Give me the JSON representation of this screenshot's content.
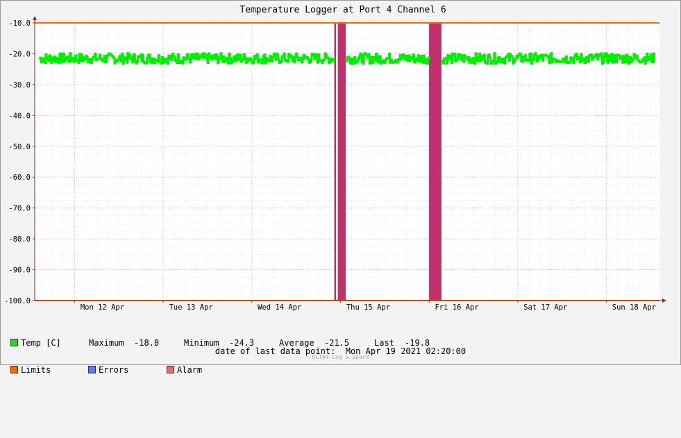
{
  "chart_data": {
    "type": "line",
    "title": "Temperature Logger at Port 4 Channel 6",
    "ylim": [
      -100,
      -10
    ],
    "y_ticks": [
      "-10.0",
      "-20.0",
      "-30.0",
      "-40.0",
      "-50.0",
      "-60.0",
      "-70.0",
      "-80.0",
      "-90.0",
      "-100.0"
    ],
    "y_tick_values": [
      -10,
      -20,
      -30,
      -40,
      -50,
      -60,
      -70,
      -80,
      -90,
      -100
    ],
    "x_ticks": [
      "Mon 12 Apr",
      "Tue 13 Apr",
      "Wed 14 Apr",
      "Thu 15 Apr",
      "Fri 16 Apr",
      "Sat 17 Apr",
      "Sun 18 Apr"
    ],
    "x_range_days": [
      11.55,
      18.6
    ],
    "x_tick_days": [
      12,
      13,
      14,
      15,
      16,
      17,
      18
    ],
    "series": [
      {
        "name": "Temp [C]",
        "color": "#00ee00",
        "mean": -21.5,
        "min": -24.3,
        "max": -18.8
      },
      {
        "name": "Limits",
        "color": "#ff6600",
        "values": [
          -10,
          -100
        ]
      }
    ],
    "alarm_periods_days": [
      [
        14.93,
        14.95
      ],
      [
        14.97,
        15.06
      ],
      [
        16.0,
        16.14
      ]
    ],
    "alarm_color": "#c0306a",
    "grid": true
  },
  "legend": {
    "temp_label": "Temp [C]",
    "limits_label": "Limits",
    "errors_label": "Errors",
    "alarm_label": "Alarm",
    "maximum_label": "Maximum",
    "maximum_value": "-18.8",
    "minimum_label": "Minimum",
    "minimum_value": "-24.3",
    "average_label": "Average",
    "average_value": "-21.5",
    "last_label": "Last",
    "last_value": "-19.8",
    "colors": {
      "temp": "#22dd22",
      "limits": "#ff6600",
      "errors": "#6677ee",
      "alarm": "#ee6677"
    }
  },
  "footer": {
    "label": "date of last data point:",
    "value": "Mon Apr 19 2021 02:20:00",
    "credit": "OCTA4 Log & Guard"
  }
}
